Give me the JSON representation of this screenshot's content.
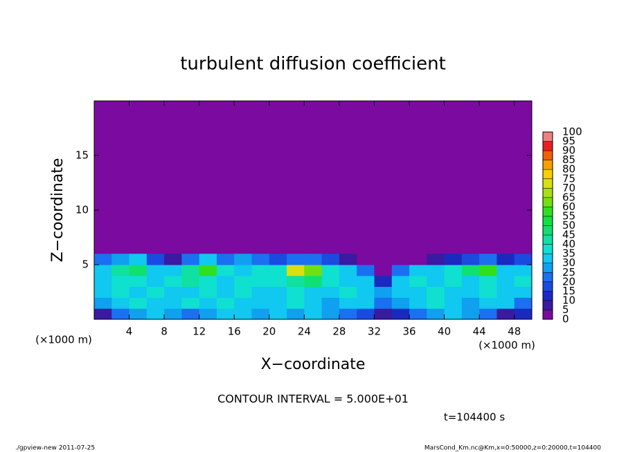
{
  "chart_data": {
    "type": "heatmap",
    "title": "turbulent diffusion coefficient",
    "x_label": "X−coordinate",
    "y_label": "Z−coordinate",
    "x_unit": "(×1000 m)",
    "y_unit": "(×1000 m)",
    "xlim": [
      0,
      50
    ],
    "ylim": [
      0,
      20
    ],
    "xticks": [
      4,
      8,
      12,
      16,
      20,
      24,
      28,
      32,
      36,
      40,
      44,
      48
    ],
    "yticks": [
      5,
      10,
      15
    ],
    "levels": [
      0,
      5,
      10,
      15,
      20,
      25,
      30,
      35,
      40,
      45,
      50,
      55,
      60,
      65,
      70,
      75,
      80,
      85,
      90,
      95,
      100
    ],
    "colors": [
      "#7a0aa0",
      "#3a1aa0",
      "#1a2ac0",
      "#1a4ae0",
      "#1a70f0",
      "#10a0f0",
      "#10c8f0",
      "#10e0d0",
      "#10e0a0",
      "#10e070",
      "#10e040",
      "#30e020",
      "#70e010",
      "#a8e010",
      "#d8e010",
      "#f8d000",
      "#f8a000",
      "#f06000",
      "#e82020",
      "#f08080"
    ],
    "field": {
      "x": [
        1,
        3,
        5,
        7,
        9,
        11,
        13,
        15,
        17,
        19,
        21,
        23,
        25,
        27,
        29,
        31,
        33,
        35,
        37,
        39,
        41,
        43,
        45,
        47,
        49
      ],
      "z": [
        0.5,
        1.5,
        2.5,
        3.5,
        4.5,
        5.5
      ],
      "values": [
        [
          5,
          20,
          25,
          30,
          25,
          20,
          25,
          30,
          30,
          25,
          30,
          25,
          30,
          25,
          20,
          15,
          5,
          10,
          20,
          25,
          30,
          25,
          20,
          5,
          10
        ],
        [
          25,
          30,
          35,
          30,
          30,
          35,
          30,
          35,
          30,
          30,
          30,
          35,
          30,
          25,
          30,
          30,
          20,
          25,
          30,
          35,
          30,
          25,
          30,
          30,
          20
        ],
        [
          30,
          35,
          30,
          35,
          30,
          30,
          35,
          30,
          35,
          30,
          30,
          35,
          30,
          30,
          35,
          30,
          25,
          30,
          30,
          35,
          30,
          30,
          35,
          30,
          30
        ],
        [
          30,
          35,
          35,
          30,
          35,
          40,
          35,
          30,
          35,
          35,
          35,
          40,
          45,
          35,
          30,
          30,
          10,
          30,
          35,
          30,
          35,
          30,
          35,
          30,
          35
        ],
        [
          30,
          40,
          45,
          30,
          30,
          40,
          55,
          35,
          30,
          35,
          35,
          70,
          60,
          35,
          30,
          20,
          0,
          20,
          30,
          30,
          35,
          45,
          55,
          30,
          30
        ],
        [
          20,
          25,
          30,
          15,
          5,
          20,
          30,
          20,
          25,
          20,
          15,
          20,
          20,
          15,
          5,
          0,
          0,
          0,
          0,
          5,
          10,
          15,
          20,
          10,
          15
        ]
      ]
    },
    "contour_interval": "CONTOUR INTERVAL = 5.000E+01",
    "time_label": "t=104400 s",
    "footer_left": "./gpview-new   2011-07-25",
    "footer_right": "MarsCond_Km.nc@Km,x=0:50000,z=0:20000,t=104400"
  }
}
